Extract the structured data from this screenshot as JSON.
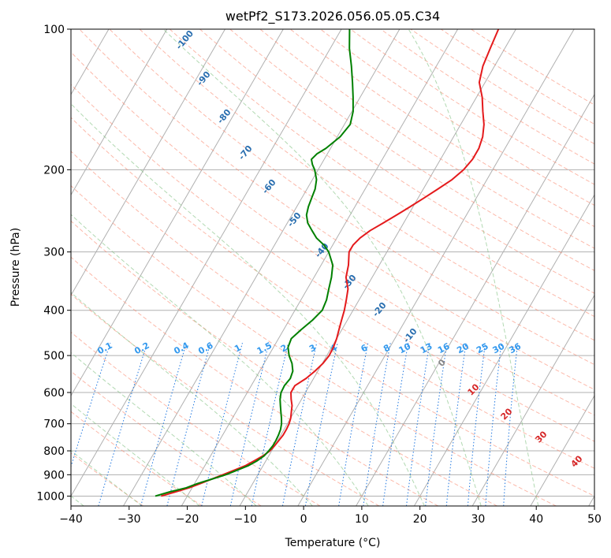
{
  "chart_data": {
    "type": "line",
    "title": "wetPf2_S173.2026.056.05.05.C34",
    "xlabel": "Temperature (°C)",
    "ylabel": "Pressure (hPa)",
    "xlim": [
      -40,
      50
    ],
    "ylim": [
      1050,
      100
    ],
    "x_ticks": [
      -40,
      -30,
      -20,
      -10,
      0,
      10,
      20,
      30,
      40,
      50
    ],
    "x_tick_labels": [
      "−40",
      "−30",
      "−20",
      "−10",
      "0",
      "10",
      "20",
      "30",
      "40",
      "50"
    ],
    "y_ticks": [
      100,
      200,
      300,
      400,
      500,
      600,
      700,
      800,
      900,
      1000
    ],
    "y_tick_labels": [
      "100",
      "200",
      "300",
      "400",
      "500",
      "600",
      "700",
      "800",
      "900",
      "1000"
    ],
    "skew_per_decade_c": 46.5,
    "dry_adiabat_labels": [
      "-100",
      "-90",
      "-80",
      "-70",
      "-60",
      "-50",
      "-40",
      "-30",
      "-20",
      "-10"
    ],
    "mixing_ratio_labels": [
      "0.1",
      "0.2",
      "0.4",
      "0.6",
      "1",
      "1.5",
      "2",
      "3",
      "4",
      "6",
      "8",
      "10",
      "13",
      "16",
      "20",
      "25",
      "30",
      "36"
    ],
    "moist_adiabat_labels": [
      "0",
      "10",
      "20",
      "30",
      "40"
    ],
    "series": [
      {
        "name": "Temperature",
        "color": "#e41a1c",
        "points": [
          [
            1000,
            -24.5
          ],
          [
            980,
            -22.5
          ],
          [
            960,
            -20.5
          ],
          [
            940,
            -19
          ],
          [
            920,
            -17.5
          ],
          [
            900,
            -16
          ],
          [
            880,
            -14.5
          ],
          [
            860,
            -13
          ],
          [
            840,
            -12
          ],
          [
            820,
            -11
          ],
          [
            800,
            -10.3
          ],
          [
            780,
            -10
          ],
          [
            760,
            -9.8
          ],
          [
            740,
            -9.6
          ],
          [
            720,
            -9.6
          ],
          [
            700,
            -9.7
          ],
          [
            680,
            -10
          ],
          [
            660,
            -10.5
          ],
          [
            640,
            -11
          ],
          [
            620,
            -11.8
          ],
          [
            600,
            -12.5
          ],
          [
            580,
            -12.5
          ],
          [
            560,
            -11.3
          ],
          [
            540,
            -10.5
          ],
          [
            520,
            -9.9
          ],
          [
            500,
            -9.6
          ],
          [
            480,
            -9.7
          ],
          [
            460,
            -10
          ],
          [
            440,
            -10.5
          ],
          [
            420,
            -11
          ],
          [
            400,
            -11.5
          ],
          [
            380,
            -12.2
          ],
          [
            360,
            -13
          ],
          [
            340,
            -14.5
          ],
          [
            320,
            -15.3
          ],
          [
            300,
            -16.5
          ],
          [
            290,
            -16.5
          ],
          [
            280,
            -16
          ],
          [
            270,
            -15
          ],
          [
            260,
            -13.5
          ],
          [
            250,
            -12
          ],
          [
            240,
            -10.5
          ],
          [
            230,
            -9
          ],
          [
            220,
            -7.5
          ],
          [
            210,
            -6
          ],
          [
            200,
            -5
          ],
          [
            190,
            -4.5
          ],
          [
            180,
            -4.5
          ],
          [
            170,
            -5
          ],
          [
            160,
            -6
          ],
          [
            150,
            -7.5
          ],
          [
            140,
            -9
          ],
          [
            130,
            -11
          ],
          [
            120,
            -12
          ],
          [
            110,
            -12.5
          ],
          [
            100,
            -13
          ]
        ]
      },
      {
        "name": "Dewpoint",
        "color": "#008000",
        "points": [
          [
            1000,
            -25.5
          ],
          [
            980,
            -23.5
          ],
          [
            960,
            -21
          ],
          [
            940,
            -19.5
          ],
          [
            920,
            -17.5
          ],
          [
            900,
            -15.5
          ],
          [
            880,
            -14
          ],
          [
            860,
            -12.5
          ],
          [
            840,
            -11.5
          ],
          [
            820,
            -10.8
          ],
          [
            800,
            -10.5
          ],
          [
            780,
            -10.3
          ],
          [
            760,
            -10.3
          ],
          [
            740,
            -10.4
          ],
          [
            720,
            -10.6
          ],
          [
            700,
            -11
          ],
          [
            680,
            -11.6
          ],
          [
            660,
            -12.3
          ],
          [
            640,
            -13
          ],
          [
            620,
            -13.7
          ],
          [
            600,
            -14.2
          ],
          [
            580,
            -14.3
          ],
          [
            560,
            -14
          ],
          [
            540,
            -14.3
          ],
          [
            520,
            -15.2
          ],
          [
            500,
            -16.5
          ],
          [
            480,
            -17.5
          ],
          [
            460,
            -17.8
          ],
          [
            440,
            -17
          ],
          [
            420,
            -16
          ],
          [
            400,
            -15.3
          ],
          [
            380,
            -15.6
          ],
          [
            360,
            -16.3
          ],
          [
            340,
            -17
          ],
          [
            320,
            -18
          ],
          [
            300,
            -20
          ],
          [
            290,
            -21.5
          ],
          [
            280,
            -23.5
          ],
          [
            270,
            -25
          ],
          [
            260,
            -26.5
          ],
          [
            250,
            -27.5
          ],
          [
            240,
            -28
          ],
          [
            230,
            -28.3
          ],
          [
            220,
            -28.6
          ],
          [
            210,
            -29.3
          ],
          [
            200,
            -30.6
          ],
          [
            195,
            -31.5
          ],
          [
            190,
            -32.2
          ],
          [
            185,
            -31.8
          ],
          [
            180,
            -30.8
          ],
          [
            170,
            -29.5
          ],
          [
            160,
            -29
          ],
          [
            150,
            -29.8
          ],
          [
            140,
            -31.2
          ],
          [
            130,
            -32.8
          ],
          [
            120,
            -34.6
          ],
          [
            110,
            -36.7
          ],
          [
            100,
            -38.6
          ]
        ]
      }
    ]
  }
}
